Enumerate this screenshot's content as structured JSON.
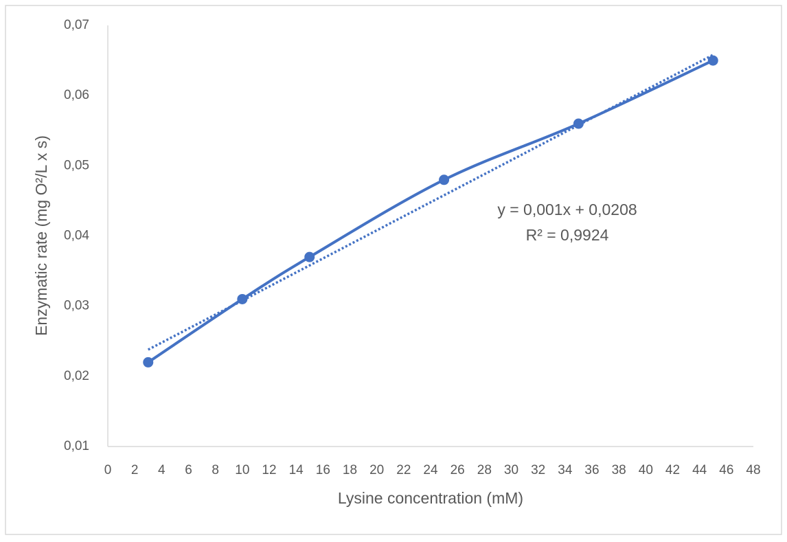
{
  "chart_data": {
    "type": "scatter_smooth",
    "x_label": "Lysine concentration (mM)",
    "y_label": "Enzymatic rate (mg O²/L x s)",
    "series": [
      {
        "color": "#4472c4",
        "x": [
          3,
          10,
          15,
          25,
          35,
          45
        ],
        "values": [
          0.022,
          0.031,
          0.037,
          0.048,
          0.056,
          0.065
        ]
      }
    ],
    "trendline": {
      "slope": 0.001,
      "intercept": 0.0208,
      "label": "y = 0,001x + 0,0208",
      "r2_label": "R² = 0,9924"
    },
    "xlim": [
      0,
      48
    ],
    "xticks": [
      0,
      2,
      4,
      6,
      8,
      10,
      12,
      14,
      16,
      18,
      20,
      22,
      24,
      26,
      28,
      30,
      32,
      34,
      36,
      38,
      40,
      42,
      44,
      46,
      48
    ],
    "ylim": [
      0.01,
      0.07
    ],
    "yticks": [
      {
        "value": 0.01,
        "label": "0,01"
      },
      {
        "value": 0.02,
        "label": "0,02"
      },
      {
        "value": 0.03,
        "label": "0,03"
      },
      {
        "value": 0.04,
        "label": "0,04"
      },
      {
        "value": 0.05,
        "label": "0,05"
      },
      {
        "value": 0.06,
        "label": "0,06"
      },
      {
        "value": 0.07,
        "label": "0,07"
      }
    ],
    "grid": false
  }
}
